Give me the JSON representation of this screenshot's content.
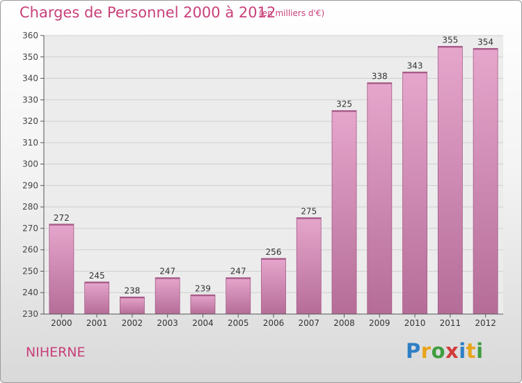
{
  "title": "Charges de Personnel 2000 à 2012",
  "subtitle": "(en milliers d'€)",
  "commune": "NIHERNE",
  "logo": {
    "letters": [
      "P",
      "r",
      "o",
      "x",
      "i",
      "t",
      "i"
    ],
    "colors": [
      "#2f7fc4",
      "#e8a41a",
      "#3f9d3f",
      "#d23b3b",
      "#2f7fc4",
      "#e8a41a",
      "#3f9d3f"
    ]
  },
  "colors": {
    "accent": "#c8407a",
    "bar_top": "#e6a6cc",
    "bar_bottom": "#b56d98",
    "bar_edge": "#a65a88"
  },
  "chart_data": {
    "type": "bar",
    "title": "Charges de Personnel 2000 à 2012",
    "subtitle": "(en milliers d'€)",
    "categories": [
      "2000",
      "2001",
      "2002",
      "2003",
      "2004",
      "2005",
      "2006",
      "2007",
      "2008",
      "2009",
      "2010",
      "2011",
      "2012"
    ],
    "values": [
      272,
      245,
      238,
      247,
      239,
      247,
      256,
      275,
      325,
      338,
      343,
      355,
      354
    ],
    "ylim": [
      230,
      360
    ],
    "yticks": [
      230,
      240,
      250,
      260,
      270,
      280,
      290,
      300,
      310,
      320,
      330,
      340,
      350,
      360
    ],
    "grid": true,
    "data_labels": true
  }
}
